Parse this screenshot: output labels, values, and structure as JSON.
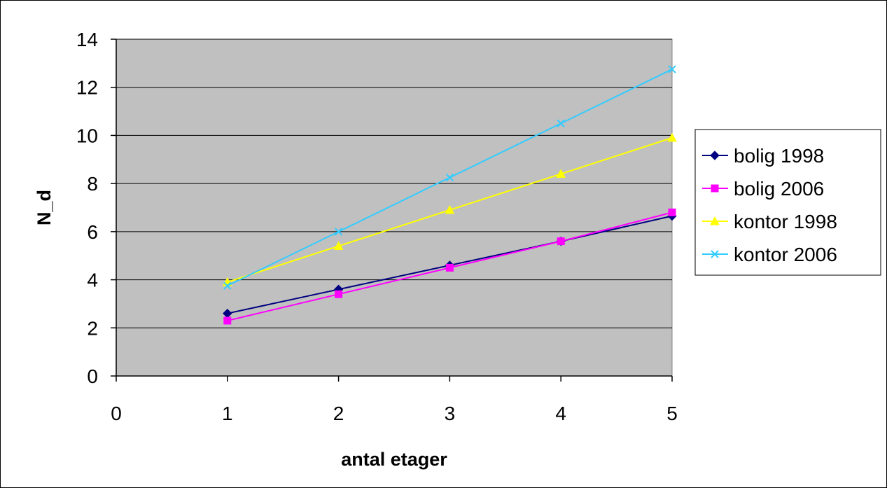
{
  "chart_data": {
    "type": "line",
    "xlabel": "antal etager",
    "ylabel": "N_d",
    "xlim": [
      0,
      5
    ],
    "ylim": [
      0,
      14
    ],
    "xticks": [
      0,
      1,
      2,
      3,
      4,
      5
    ],
    "yticks": [
      0,
      2,
      4,
      6,
      8,
      10,
      12,
      14
    ],
    "grid": "horizontal",
    "plot_background": "#c0c0c0",
    "legend_position": "right",
    "x": [
      1,
      2,
      3,
      4,
      5
    ],
    "series": [
      {
        "name": "bolig 1998",
        "color": "#000080",
        "marker": "diamond",
        "values": [
          2.6,
          3.6,
          4.6,
          5.6,
          6.65
        ]
      },
      {
        "name": "bolig 2006",
        "color": "#ff00ff",
        "marker": "square",
        "values": [
          2.3,
          3.4,
          4.5,
          5.6,
          6.8
        ]
      },
      {
        "name": "kontor 1998",
        "color": "#ffff00",
        "marker": "triangle",
        "values": [
          3.9,
          5.4,
          6.9,
          8.4,
          9.9
        ]
      },
      {
        "name": "kontor 2006",
        "color": "#33ccff",
        "marker": "x",
        "values": [
          3.75,
          6.0,
          8.25,
          10.5,
          12.75
        ]
      }
    ]
  }
}
